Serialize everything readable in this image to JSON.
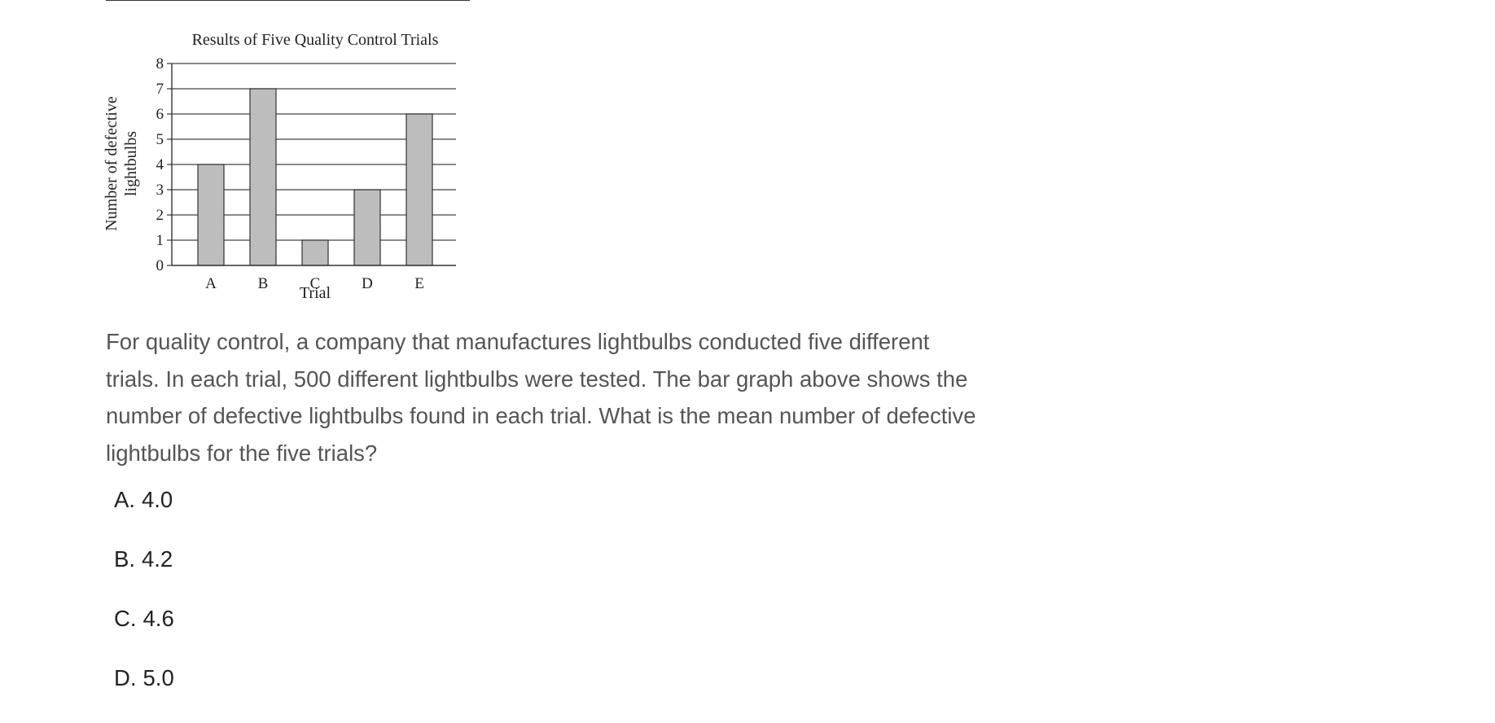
{
  "chart_data": {
    "type": "bar",
    "title": "Results of Five Quality Control Trials",
    "xlabel": "Trial",
    "ylabel_lines": [
      "Number of defective",
      "lightbulbs"
    ],
    "categories": [
      "A",
      "B",
      "C",
      "D",
      "E"
    ],
    "values": [
      4,
      7,
      1,
      3,
      6
    ],
    "ylim": [
      0,
      8
    ],
    "yticks": [
      0,
      1,
      2,
      3,
      4,
      5,
      6,
      7,
      8
    ],
    "grid": true,
    "bar_color": "#bdbdbd",
    "legend": "none"
  },
  "question": {
    "text": "For quality control, a company that manufactures lightbulbs conducted five different trials. In each trial, 500 different lightbulbs were tested. The bar graph above shows the number of defective lightbulbs found in each trial. What is the mean number of defective lightbulbs for the five trials?"
  },
  "options": [
    {
      "letter": "A",
      "value": "4.0"
    },
    {
      "letter": "B",
      "value": "4.2"
    },
    {
      "letter": "C",
      "value": "4.6"
    },
    {
      "letter": "D",
      "value": "5.0"
    }
  ]
}
